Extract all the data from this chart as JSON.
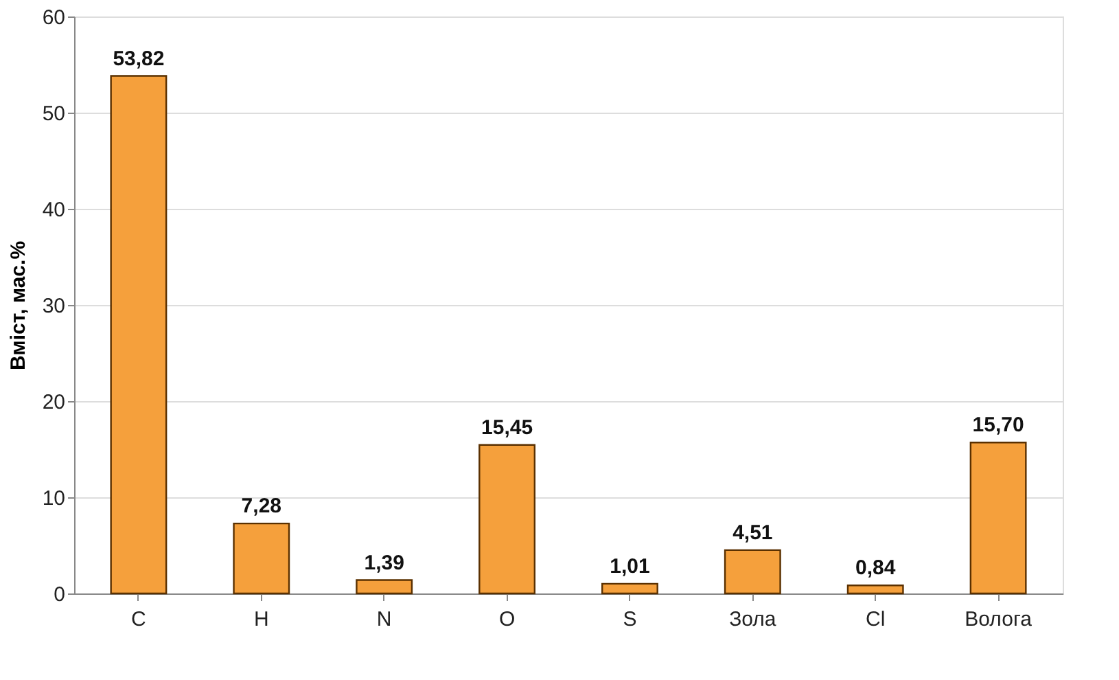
{
  "chart_data": {
    "type": "bar",
    "ylabel": "Вміст, мас.%",
    "categories": [
      "C",
      "H",
      "N",
      "O",
      "S",
      "Зола",
      "Cl",
      "Волога"
    ],
    "values": [
      53.82,
      7.28,
      1.39,
      15.45,
      1.01,
      4.51,
      0.84,
      15.7
    ],
    "value_labels": [
      "53,82",
      "7,28",
      "1,39",
      "15,45",
      "1,01",
      "4,51",
      "0,84",
      "15,70"
    ],
    "color": "#f5a03c",
    "ylim": [
      0,
      60
    ],
    "yticks": [
      0,
      10,
      20,
      30,
      40,
      50,
      60
    ],
    "grid": "y"
  }
}
